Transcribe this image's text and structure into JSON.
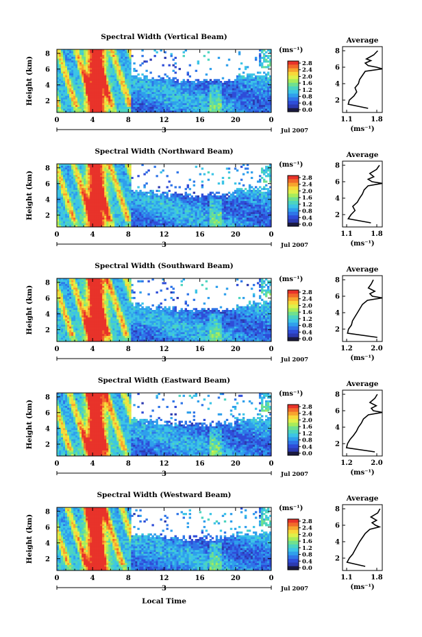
{
  "figure": {
    "xlabel": "Local Time",
    "ylabel": "Height (km)",
    "unit_label": "(ms⁻¹)",
    "date_label": "Jul 2007",
    "day_label": "3",
    "x_ticks": [
      "0",
      "4",
      "8",
      "12",
      "16",
      "20",
      "0"
    ],
    "y_ticks": [
      "8",
      "6",
      "4",
      "2"
    ],
    "colorbar_ticks": [
      "2.8",
      "2.4",
      "2.0",
      "1.6",
      "1.2",
      "0.8",
      "0.4",
      "0.0"
    ],
    "colorbar_colors": [
      "#e8332a",
      "#f26a2a",
      "#f7a42e",
      "#f8d83a",
      "#dff04a",
      "#a8ec5a",
      "#6fe08f",
      "#4cd4bf",
      "#3cc4e6",
      "#2f9fec",
      "#2f75e8",
      "#2f4dd8",
      "#2c3ab0",
      "#1a1a40"
    ],
    "avg_title": "Average",
    "avg_unit": "(ms⁻¹)",
    "avg_y_ticks": [
      "8",
      "6",
      "4",
      "2"
    ]
  },
  "chart_data": [
    {
      "type": "heatmap",
      "title": "Spectral Width (Vertical Beam)",
      "xlabel": "",
      "ylabel": "Height (km)",
      "x_range_hours": [
        0,
        24
      ],
      "y_range_km": [
        0.5,
        8.5
      ],
      "colorbar": {
        "label": "(ms⁻¹)",
        "range": [
          0.0,
          2.8
        ]
      },
      "average_profile": {
        "title": "Average",
        "xlim": [
          1.1,
          1.8
        ],
        "x_ticks": [
          "1.1",
          "1.8"
        ],
        "height_km": [
          1.0,
          1.5,
          2.0,
          2.5,
          3.0,
          3.5,
          4.0,
          4.5,
          5.0,
          5.5,
          5.8,
          6.0,
          6.2,
          6.5,
          6.8,
          7.0,
          7.5,
          8.0
        ],
        "value": [
          1.55,
          1.2,
          1.22,
          1.3,
          1.35,
          1.32,
          1.38,
          1.4,
          1.45,
          1.5,
          1.8,
          1.7,
          1.55,
          1.5,
          1.6,
          1.52,
          1.65,
          1.72
        ]
      }
    },
    {
      "type": "heatmap",
      "title": "Spectral Width (Northward Beam)",
      "xlabel": "",
      "ylabel": "Height (km)",
      "x_range_hours": [
        0,
        24
      ],
      "y_range_km": [
        0.5,
        8.5
      ],
      "colorbar": {
        "label": "(ms⁻¹)",
        "range": [
          0.0,
          2.8
        ]
      },
      "average_profile": {
        "title": "Average",
        "xlim": [
          1.1,
          1.8
        ],
        "x_ticks": [
          "1.1",
          "1.8"
        ],
        "height_km": [
          1.0,
          1.5,
          2.0,
          2.5,
          3.0,
          3.5,
          4.0,
          4.5,
          5.0,
          5.5,
          5.8,
          6.0,
          6.3,
          6.6,
          7.0,
          7.5,
          8.0
        ],
        "value": [
          1.6,
          1.2,
          1.25,
          1.32,
          1.28,
          1.36,
          1.4,
          1.45,
          1.48,
          1.55,
          1.8,
          1.62,
          1.55,
          1.65,
          1.58,
          1.7,
          1.75
        ]
      }
    },
    {
      "type": "heatmap",
      "title": "Spectral Width (Southward Beam)",
      "xlabel": "",
      "ylabel": "Height (km)",
      "x_range_hours": [
        0,
        24
      ],
      "y_range_km": [
        0.5,
        8.5
      ],
      "colorbar": {
        "label": "(ms⁻¹)",
        "range": [
          0.0,
          2.8
        ]
      },
      "average_profile": {
        "title": "Average",
        "xlim": [
          1.2,
          2.0
        ],
        "x_ticks": [
          "1.2",
          "2.0"
        ],
        "height_km": [
          1.0,
          1.5,
          2.0,
          2.5,
          3.0,
          3.5,
          4.0,
          4.5,
          5.0,
          5.5,
          5.8,
          6.0,
          6.3,
          6.6,
          7.0,
          7.5,
          8.0
        ],
        "value": [
          1.9,
          1.3,
          1.32,
          1.38,
          1.4,
          1.45,
          1.5,
          1.55,
          1.6,
          1.7,
          2.0,
          1.8,
          1.75,
          1.85,
          1.72,
          1.78,
          1.82
        ]
      }
    },
    {
      "type": "heatmap",
      "title": "Spectral Width (Eastward Beam)",
      "xlabel": "",
      "ylabel": "Height (km)",
      "x_range_hours": [
        0,
        24
      ],
      "y_range_km": [
        0.5,
        8.5
      ],
      "colorbar": {
        "label": "(ms⁻¹)",
        "range": [
          0.0,
          2.8
        ]
      },
      "average_profile": {
        "title": "Average",
        "xlim": [
          1.2,
          2.0
        ],
        "x_ticks": [
          "1.2",
          "2.0"
        ],
        "height_km": [
          1.0,
          1.5,
          2.0,
          2.5,
          3.0,
          3.5,
          4.0,
          4.5,
          5.0,
          5.5,
          5.8,
          6.0,
          6.3,
          6.6,
          7.0,
          7.5,
          8.0
        ],
        "value": [
          1.85,
          1.28,
          1.3,
          1.35,
          1.42,
          1.48,
          1.52,
          1.58,
          1.62,
          1.72,
          2.0,
          1.82,
          1.78,
          1.88,
          1.75,
          1.85,
          1.9
        ]
      }
    },
    {
      "type": "heatmap",
      "title": "Spectral Width (Westward Beam)",
      "xlabel": "Local Time",
      "ylabel": "Height (km)",
      "x_range_hours": [
        0,
        24
      ],
      "y_range_km": [
        0.5,
        8.5
      ],
      "colorbar": {
        "label": "(ms⁻¹)",
        "range": [
          0.0,
          2.8
        ]
      },
      "average_profile": {
        "title": "Average",
        "xlim": [
          1.1,
          1.8
        ],
        "x_ticks": [
          "1.1",
          "1.8"
        ],
        "height_km": [
          1.0,
          1.5,
          2.0,
          2.5,
          3.0,
          3.5,
          4.0,
          4.5,
          5.0,
          5.5,
          5.8,
          6.0,
          6.3,
          6.6,
          7.0,
          7.5,
          8.0
        ],
        "value": [
          1.5,
          1.18,
          1.22,
          1.28,
          1.32,
          1.36,
          1.4,
          1.45,
          1.5,
          1.58,
          1.75,
          1.68,
          1.62,
          1.7,
          1.6,
          1.72,
          1.76
        ]
      }
    }
  ]
}
